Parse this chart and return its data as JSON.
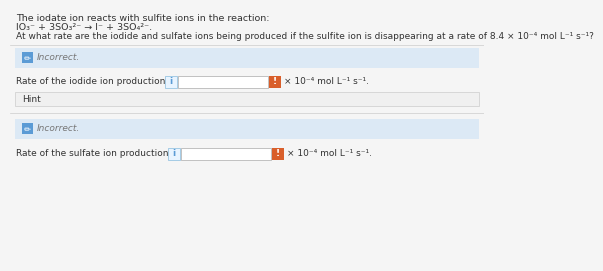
{
  "title_line1": "The iodate ion reacts with sulfite ions in the reaction:",
  "title_line2": "IO₃⁻ + 3SO₃²⁻ → I⁻ + 3SO₄²⁻.",
  "title_line3": "At what rate are the iodide and sulfate ions being produced if the sulfite ion is disappearing at a rate of 8.4 × 10⁻⁴ mol L⁻¹ s⁻¹?",
  "incorrect_label": "Incorrect.",
  "iodide_label": "Rate of the iodide ion production is",
  "sulfate_label": "Rate of the sulfate ion production is",
  "units": "× 10⁻⁴ mol L⁻¹ s⁻¹.",
  "hint_label": "Hint",
  "bg_color": "#f5f5f5",
  "incorrect_box_color": "#dce9f5",
  "hint_box_color": "#f0f0f0",
  "input_box_bg": "#e8f4ff",
  "input_field_bg": "#ffffff",
  "alert_box_color": "#d95f2b",
  "pencil_icon_color": "#5b9bd5",
  "text_color": "#333333",
  "gray_text_color": "#777777",
  "separator_color": "#cccccc",
  "font_size_title": 6.8,
  "font_size_label": 6.5
}
